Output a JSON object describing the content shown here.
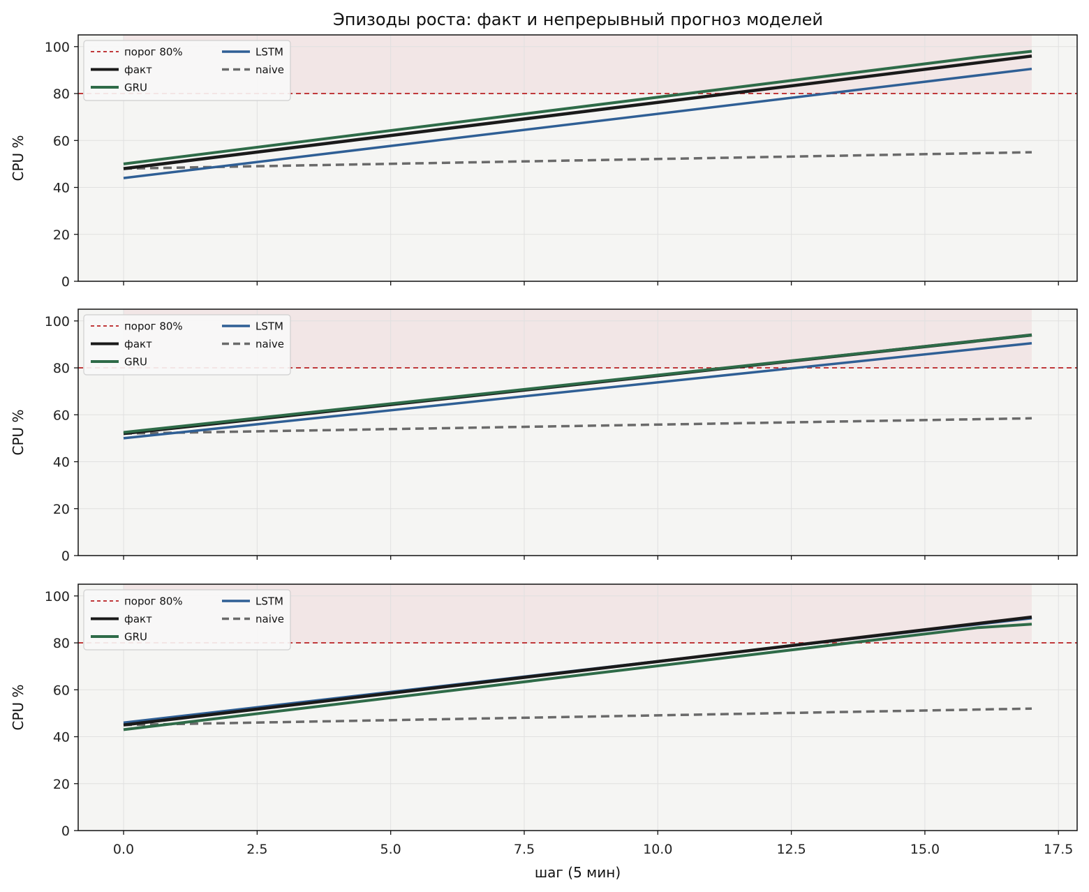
{
  "title": "Эпизоды роста: факт и непрерывный прогноз моделей",
  "colors": {
    "threshold": "#c0393b",
    "fact": "#1a1a1a",
    "gru": "#2e6b48",
    "lstm": "#2f5f95",
    "naive": "#6a6a6a",
    "background": "#f5f5f3",
    "shade": "#f2e6e6"
  },
  "chart_data": [
    {
      "type": "line",
      "xlabel": "",
      "ylabel": "CPU %",
      "xlim": [
        -0.85,
        17.85
      ],
      "ylim": [
        0,
        105
      ],
      "xticks": [
        0.0,
        2.5,
        5.0,
        7.5,
        10.0,
        12.5,
        15.0,
        17.5
      ],
      "yticks": [
        0,
        20,
        40,
        60,
        80,
        100
      ],
      "threshold": 80,
      "legend_position": "upper-left",
      "series": [
        {
          "name": "порог 80%",
          "role": "threshold",
          "x": [
            -0.85,
            17.85
          ],
          "values": [
            80,
            80
          ]
        },
        {
          "name": "факт",
          "role": "fact",
          "x": [
            0,
            17
          ],
          "values": [
            48,
            96
          ]
        },
        {
          "name": "GRU",
          "role": "gru",
          "x": [
            0,
            16,
            17
          ],
          "values": [
            50,
            95.5,
            98
          ]
        },
        {
          "name": "LSTM",
          "role": "lstm",
          "x": [
            0,
            17
          ],
          "values": [
            44,
            90.5
          ]
        },
        {
          "name": "naive",
          "role": "naive",
          "x": [
            0,
            17
          ],
          "values": [
            48,
            55
          ]
        }
      ]
    },
    {
      "type": "line",
      "xlabel": "",
      "ylabel": "CPU %",
      "xlim": [
        -0.85,
        17.85
      ],
      "ylim": [
        0,
        105
      ],
      "xticks": [
        0.0,
        2.5,
        5.0,
        7.5,
        10.0,
        12.5,
        15.0,
        17.5
      ],
      "yticks": [
        0,
        20,
        40,
        60,
        80,
        100
      ],
      "threshold": 80,
      "legend_position": "upper-left",
      "series": [
        {
          "name": "порог 80%",
          "role": "threshold",
          "x": [
            -0.85,
            17.85
          ],
          "values": [
            80,
            80
          ]
        },
        {
          "name": "факт",
          "role": "fact",
          "x": [
            0,
            17
          ],
          "values": [
            52,
            94
          ]
        },
        {
          "name": "GRU",
          "role": "gru",
          "x": [
            0,
            17
          ],
          "values": [
            52.5,
            94
          ]
        },
        {
          "name": "LSTM",
          "role": "lstm",
          "x": [
            0,
            17
          ],
          "values": [
            50,
            90.5
          ]
        },
        {
          "name": "naive",
          "role": "naive",
          "x": [
            0,
            17
          ],
          "values": [
            52,
            58.5
          ]
        }
      ]
    },
    {
      "type": "line",
      "xlabel": "шаг (5 мин)",
      "ylabel": "CPU %",
      "xlim": [
        -0.85,
        17.85
      ],
      "ylim": [
        0,
        105
      ],
      "xticks": [
        0.0,
        2.5,
        5.0,
        7.5,
        10.0,
        12.5,
        15.0,
        17.5
      ],
      "yticks": [
        0,
        20,
        40,
        60,
        80,
        100
      ],
      "threshold": 80,
      "legend_position": "upper-left",
      "series": [
        {
          "name": "порог 80%",
          "role": "threshold",
          "x": [
            -0.85,
            17.85
          ],
          "values": [
            80,
            80
          ]
        },
        {
          "name": "факт",
          "role": "fact",
          "x": [
            0,
            17
          ],
          "values": [
            45,
            91
          ]
        },
        {
          "name": "GRU",
          "role": "gru",
          "x": [
            0,
            16,
            17
          ],
          "values": [
            43,
            86.5,
            88
          ]
        },
        {
          "name": "LSTM",
          "role": "lstm",
          "x": [
            0,
            17
          ],
          "values": [
            46,
            90.5
          ]
        },
        {
          "name": "naive",
          "role": "naive",
          "x": [
            0,
            17
          ],
          "values": [
            45,
            52
          ]
        }
      ]
    }
  ]
}
